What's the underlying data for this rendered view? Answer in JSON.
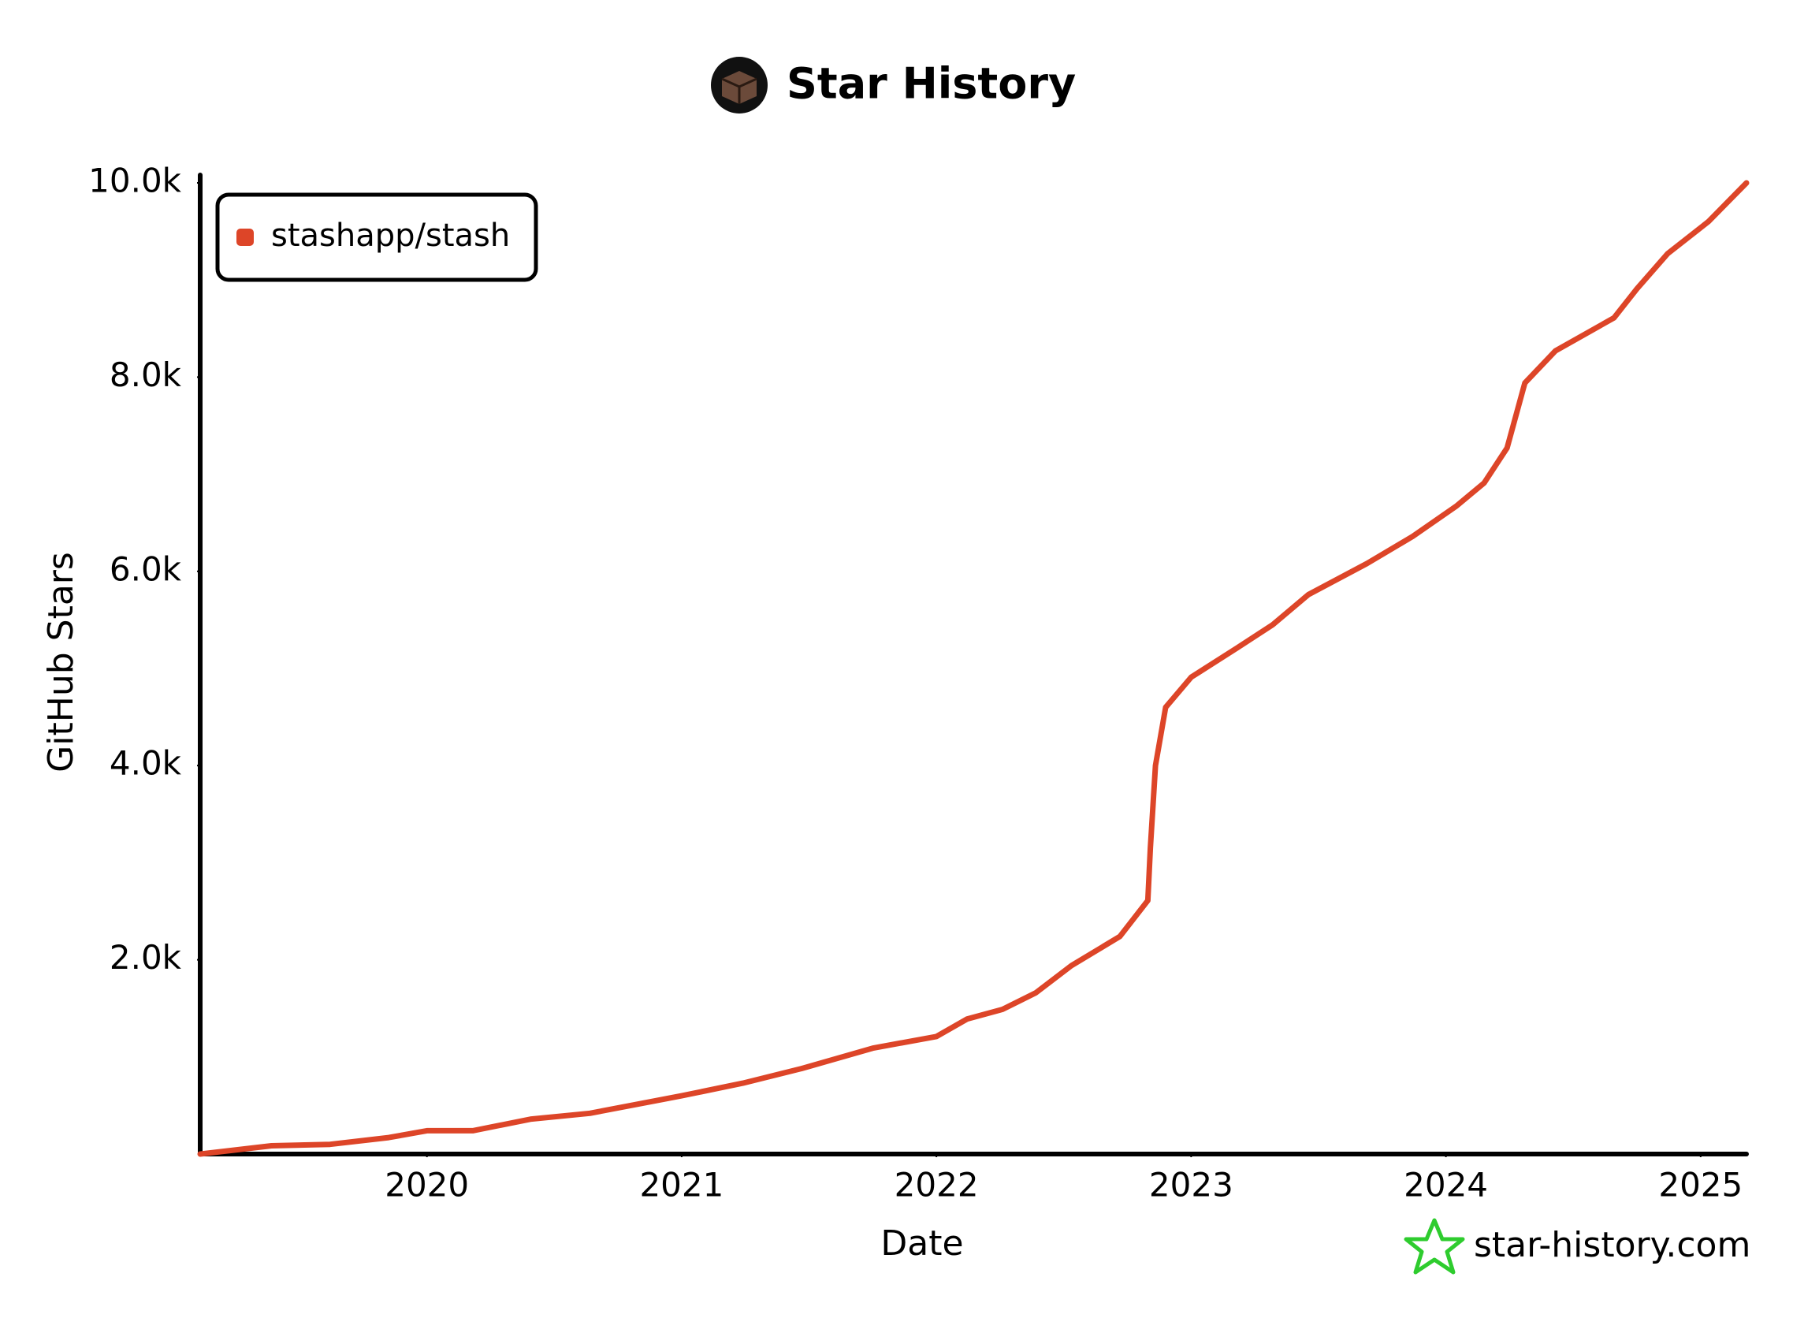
{
  "chart_data": {
    "type": "line",
    "title": "Star History",
    "x_label": "Date",
    "y_label": "GitHub Stars",
    "watermark": "star-history.com",
    "legend": "top-left",
    "x": [
      2019.11,
      2019.39,
      2019.62,
      2019.85,
      2020.0,
      2020.18,
      2020.41,
      2020.64,
      2020.82,
      2021.0,
      2021.24,
      2021.47,
      2021.75,
      2022.0,
      2022.12,
      2022.26,
      2022.39,
      2022.53,
      2022.72,
      2022.83,
      2022.84,
      2022.86,
      2022.9,
      2023.0,
      2023.18,
      2023.32,
      2023.46,
      2023.69,
      2023.87,
      2024.04,
      2024.15,
      2024.24,
      2024.31,
      2024.43,
      2024.66,
      2024.75,
      2024.87,
      2025.03,
      2025.18
    ],
    "series": [
      {
        "name": "stashapp/stash",
        "color": "#dd4528",
        "values": [
          0,
          85,
          100,
          170,
          240,
          240,
          360,
          420,
          510,
          600,
          730,
          880,
          1090,
          1210,
          1390,
          1490,
          1660,
          1940,
          2240,
          2610,
          3150,
          4000,
          4600,
          4910,
          5210,
          5450,
          5760,
          6080,
          6360,
          6670,
          6910,
          7270,
          7940,
          8270,
          8610,
          8910,
          9270,
          9600,
          10000
        ]
      }
    ],
    "xlim": [
      2019.11,
      2025.18
    ],
    "xticks": [
      2020,
      2021,
      2022,
      2023,
      2024,
      2025
    ],
    "ylim": [
      0,
      10000
    ],
    "yticks": [
      {
        "value": 2000,
        "label": "2.0k"
      },
      {
        "value": 4000,
        "label": "4.0k"
      },
      {
        "value": 6000,
        "label": "6.0k"
      },
      {
        "value": 8000,
        "label": "8.0k"
      },
      {
        "value": 10000,
        "label": "10.0k"
      }
    ]
  }
}
